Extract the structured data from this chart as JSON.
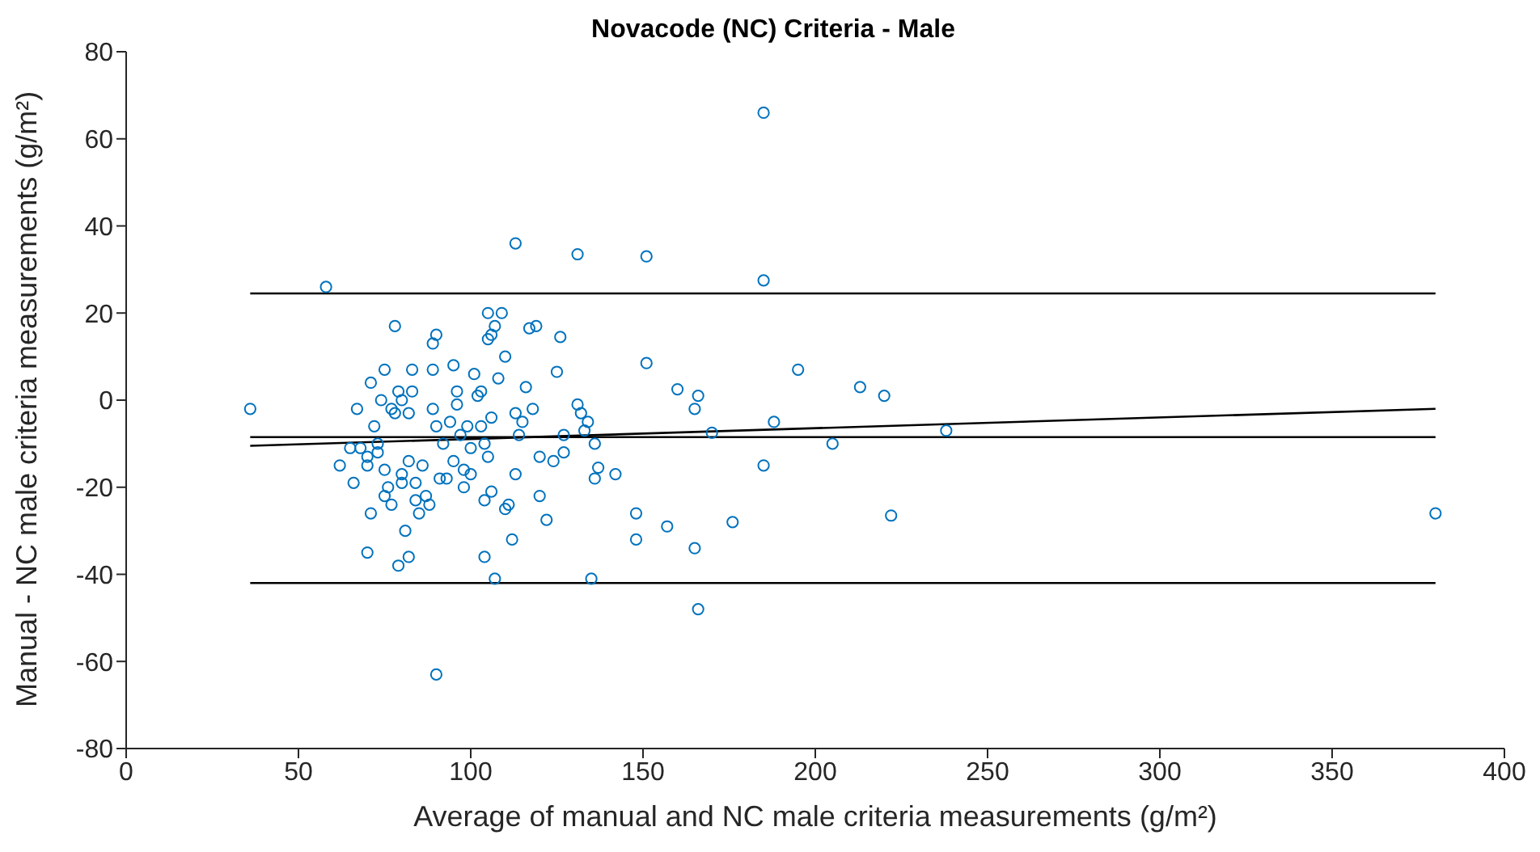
{
  "chart_data": {
    "type": "scatter",
    "title": "Novacode (NC) Criteria - Male",
    "xlabel": "Average of manual and NC male criteria measurements (g/m²)",
    "ylabel": "Manual - NC male criteria measurements (g/m²)",
    "xlim": [
      0,
      400
    ],
    "xticks": [
      0,
      50,
      100,
      150,
      200,
      250,
      300,
      350,
      400
    ],
    "ylim": [
      -80,
      80
    ],
    "yticks": [
      -80,
      -60,
      -40,
      -20,
      0,
      20,
      40,
      60,
      80
    ],
    "grid": false,
    "legend": false,
    "series": [
      {
        "type": "scatter",
        "marker": "circle",
        "color": "#0072bd",
        "x": [
          36,
          58,
          185,
          185,
          113,
          131,
          151,
          380,
          90,
          166,
          135,
          107,
          176,
          157,
          222,
          238,
          213,
          220,
          205,
          195,
          188,
          185,
          170,
          166,
          165,
          160,
          151,
          148,
          148,
          165,
          142,
          137,
          136,
          136,
          134,
          133,
          132,
          131,
          127,
          127,
          126,
          125,
          124,
          122,
          120,
          120,
          119,
          118,
          117,
          116,
          115,
          114,
          113,
          113,
          112,
          111,
          110,
          109,
          110,
          108,
          107,
          106,
          106,
          105,
          106,
          105,
          105,
          104,
          104,
          104,
          103,
          103,
          102,
          101,
          100,
          100,
          99,
          98,
          98,
          97,
          96,
          96,
          95,
          95,
          94,
          93,
          92,
          91,
          90,
          90,
          89,
          89,
          89,
          88,
          87,
          86,
          85,
          84,
          84,
          83,
          83,
          82,
          82,
          82,
          81,
          80,
          80,
          80,
          79,
          79,
          78,
          78,
          77,
          77,
          76,
          75,
          75,
          74,
          73,
          72,
          71,
          71,
          70,
          70,
          70,
          68,
          67,
          66,
          65,
          62,
          75,
          73
        ],
        "values": [
          -2,
          26,
          66,
          27.5,
          36,
          33.5,
          33,
          -26,
          -63,
          -48,
          -41,
          -41,
          -28,
          -29,
          -26.5,
          -7,
          3,
          1,
          -10,
          7,
          -5,
          -15,
          -7.5,
          1,
          -2,
          2.5,
          8.5,
          -26,
          -32,
          -34,
          -17,
          -15.5,
          -18,
          -10,
          -5,
          -7,
          -3,
          -1,
          -8,
          -12,
          14.5,
          6.5,
          -14,
          -27.5,
          -22,
          -13,
          17,
          -2,
          16.5,
          3,
          -5,
          -8,
          -3,
          -17,
          -32,
          -24,
          10,
          20,
          -25,
          5,
          17,
          15,
          -4,
          -13,
          -21,
          14,
          20,
          -36,
          -23,
          -10,
          2,
          -6,
          1,
          6,
          -11,
          -17,
          -6,
          -16,
          -20,
          -8,
          2,
          -1,
          8,
          -14,
          -5,
          -18,
          -10,
          -18,
          15,
          -6,
          13,
          -2,
          7,
          -24,
          -22,
          -15,
          -26,
          -19,
          -23,
          2,
          7,
          -3,
          -14,
          -36,
          -30,
          -19,
          0,
          -17,
          -38,
          2,
          17,
          -3,
          -2,
          -24,
          -20,
          -16,
          7,
          0,
          -10,
          -6,
          4,
          -26,
          -13,
          -15,
          -35,
          -11,
          -2,
          -19,
          -11,
          -15,
          -22,
          -12
        ]
      },
      {
        "type": "line",
        "color": "#000000",
        "x": [
          36,
          380
        ],
        "values": [
          24.5,
          24.5
        ]
      },
      {
        "type": "line",
        "color": "#000000",
        "x": [
          36,
          380
        ],
        "values": [
          -8.5,
          -8.5
        ]
      },
      {
        "type": "line",
        "color": "#000000",
        "x": [
          36,
          380
        ],
        "values": [
          -42,
          -42
        ]
      },
      {
        "type": "line",
        "color": "#000000",
        "x": [
          36,
          380
        ],
        "values": [
          -10.5,
          -2
        ]
      }
    ]
  }
}
